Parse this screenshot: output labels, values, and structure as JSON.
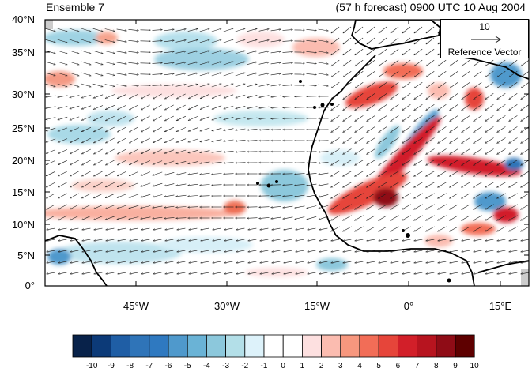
{
  "header": {
    "left_title": "Ensemble 7",
    "right_title": "(57 h forecast) 0900 UTC 10 Aug 2004"
  },
  "axes": {
    "lat_labels": [
      "40°N",
      "35°N",
      "30°N",
      "25°N",
      "20°N",
      "15°N",
      "10°N",
      "5°N",
      "0°"
    ],
    "lon_labels": [
      "45°W",
      "30°W",
      "15°W",
      "0°",
      "15°E"
    ]
  },
  "reference_vector": {
    "magnitude": "10",
    "label": "Reference Vector"
  },
  "colorbar": {
    "labels": [
      "-10",
      "-9",
      "-8",
      "-7",
      "-6",
      "-5",
      "-4",
      "-3",
      "-2",
      "-1",
      "0",
      "1",
      "2",
      "3",
      "4",
      "5",
      "6",
      "7",
      "8",
      "9",
      "10"
    ],
    "colors": [
      "#08224a",
      "#0c3a78",
      "#1f5ea5",
      "#2f74b8",
      "#2f79c0",
      "#4f99cc",
      "#6ab3d6",
      "#8cc8dc",
      "#b3dfe8",
      "#ddf2fa",
      "#ffffff",
      "#ffffff",
      "#fde0e0",
      "#fbbcb0",
      "#f7977e",
      "#f26d57",
      "#e6453a",
      "#d21f29",
      "#b7141f",
      "#8f0c16",
      "#5e0000"
    ]
  },
  "map": {
    "land_outline_color": "#000000",
    "vector_color": "#1a1a1a"
  }
}
